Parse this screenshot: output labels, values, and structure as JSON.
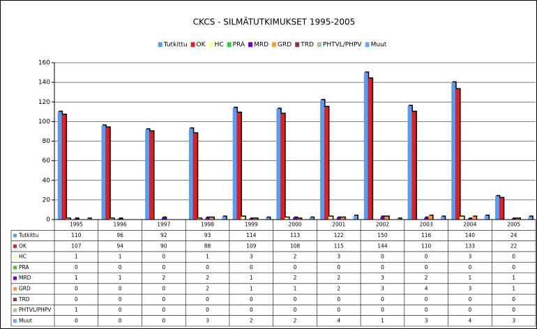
{
  "chart_data": {
    "type": "bar",
    "title": "CKCS - SILMÄTUTKIMUKSET 1995-2005",
    "categories": [
      "1995",
      "1996",
      "1997",
      "1998",
      "1999",
      "2000",
      "2001",
      "2002",
      "2003",
      "2004",
      "2005"
    ],
    "series": [
      {
        "name": "Tutkittu",
        "color": "#5b9cf2",
        "values": [
          110,
          96,
          92,
          93,
          114,
          113,
          122,
          150,
          116,
          140,
          24
        ]
      },
      {
        "name": "OK",
        "color": "#e02020",
        "values": [
          107,
          94,
          90,
          88,
          109,
          108,
          115,
          144,
          110,
          133,
          22
        ]
      },
      {
        "name": "HC",
        "color": "#ffff99",
        "values": [
          1,
          1,
          0,
          1,
          3,
          2,
          3,
          0,
          0,
          3,
          0
        ]
      },
      {
        "name": "PRA",
        "color": "#33cc33",
        "values": [
          0,
          0,
          0,
          0,
          0,
          0,
          0,
          0,
          0,
          0,
          0
        ]
      },
      {
        "name": "MRD",
        "color": "#6a00d8",
        "values": [
          1,
          1,
          2,
          2,
          1,
          2,
          2,
          3,
          2,
          1,
          1
        ]
      },
      {
        "name": "GRD",
        "color": "#ff9933",
        "values": [
          0,
          0,
          0,
          2,
          1,
          1,
          2,
          3,
          4,
          3,
          1
        ]
      },
      {
        "name": "TRD",
        "color": "#8b3a3a",
        "values": [
          0,
          0,
          0,
          0,
          0,
          0,
          0,
          0,
          0,
          0,
          0
        ]
      },
      {
        "name": "PHTVL/PHPV",
        "color": "#99cc99",
        "values": [
          1,
          0,
          0,
          0,
          0,
          0,
          0,
          0,
          0,
          0,
          0
        ]
      },
      {
        "name": "Muut",
        "color": "#66a8ff",
        "values": [
          0,
          0,
          0,
          3,
          2,
          2,
          4,
          1,
          3,
          4,
          3
        ]
      }
    ],
    "ylim": [
      0,
      160
    ],
    "yticks": [
      0,
      20,
      40,
      60,
      80,
      100,
      120,
      140,
      160
    ],
    "grid": true,
    "legend": "top",
    "data_table": true
  }
}
